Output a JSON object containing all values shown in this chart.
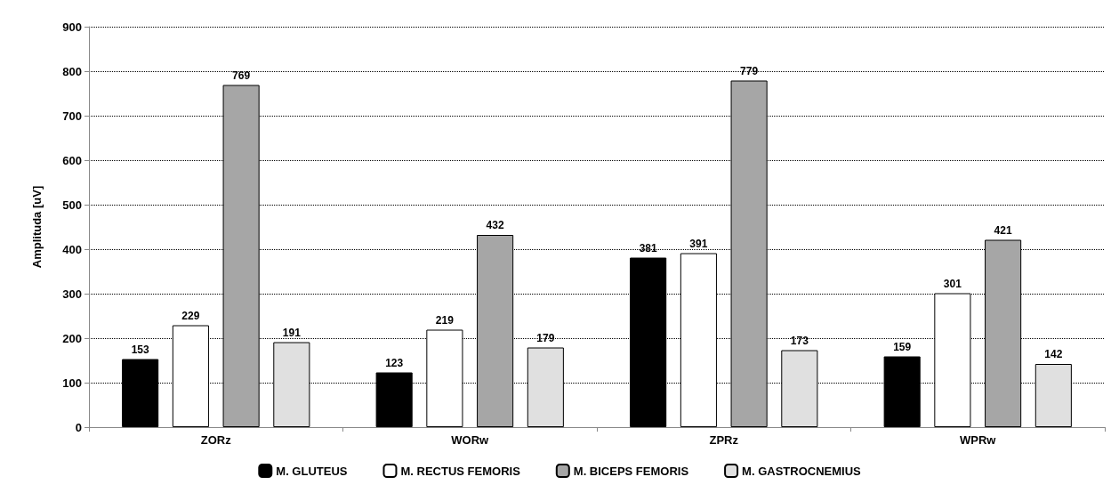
{
  "chart_data": {
    "type": "bar",
    "ylabel": "Amplituda [uV]",
    "categories": [
      "ZORz",
      "WORw",
      "ZPRz",
      "WPRw"
    ],
    "series": [
      {
        "name": "M. GLUTEUS",
        "color": "#000000",
        "values": [
          153,
          123,
          381,
          159
        ]
      },
      {
        "name": "M. RECTUS FEMORIS",
        "color": "#ffffff",
        "values": [
          229,
          219,
          391,
          301
        ]
      },
      {
        "name": "M. BICEPS FEMORIS",
        "color": "#a6a6a6",
        "values": [
          769,
          432,
          779,
          421
        ]
      },
      {
        "name": "M. GASTROCNEMIUS",
        "color": "#e0e0e0",
        "values": [
          191,
          179,
          173,
          142
        ]
      }
    ],
    "ylim": [
      0,
      900
    ],
    "yticks": [
      0,
      100,
      200,
      300,
      400,
      500,
      600,
      700,
      800,
      900
    ],
    "grid": "y",
    "legend": "bottom",
    "data_labels": true
  }
}
